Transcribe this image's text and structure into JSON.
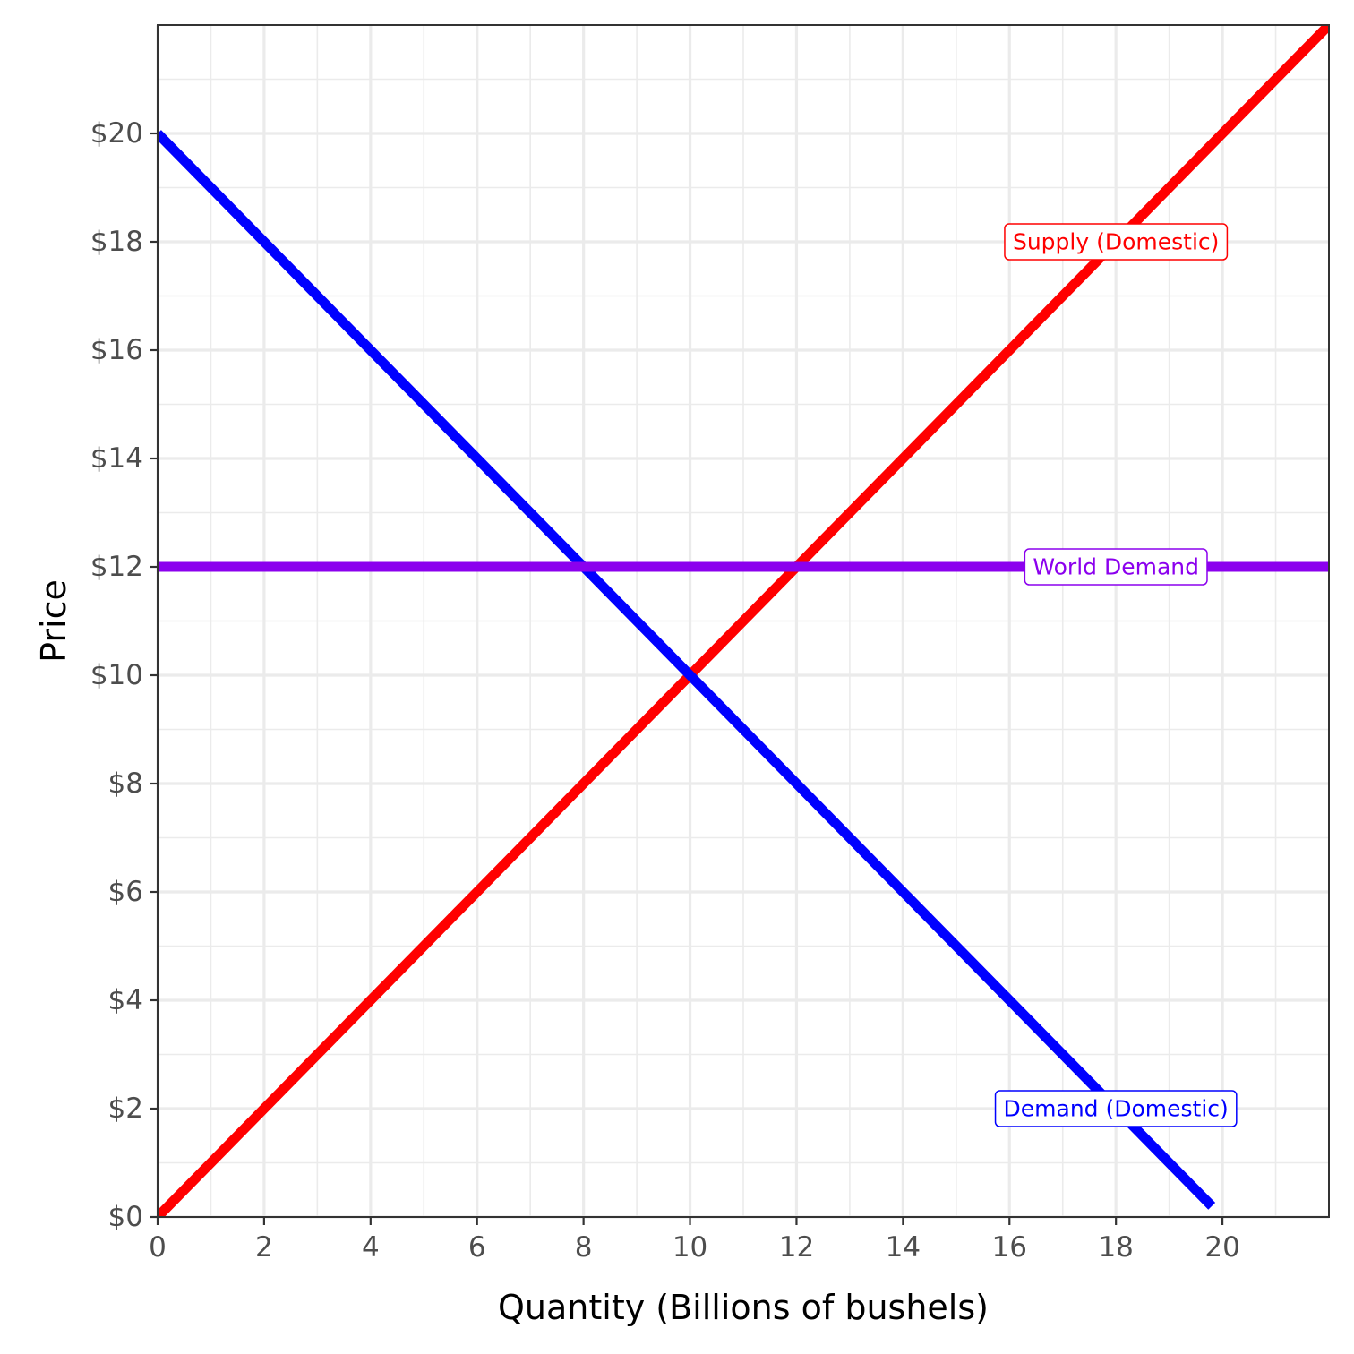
{
  "chart_data": {
    "type": "line",
    "xlabel": "Quantity (Billions of bushels)",
    "ylabel": "Price",
    "xlim": [
      0,
      22
    ],
    "ylim": [
      0,
      22
    ],
    "x_ticks": [
      0,
      2,
      4,
      6,
      8,
      10,
      12,
      14,
      16,
      18,
      20
    ],
    "x_tick_labels": [
      "0",
      "2",
      "4",
      "6",
      "8",
      "10",
      "12",
      "14",
      "16",
      "18",
      "20"
    ],
    "y_ticks": [
      0,
      2,
      4,
      6,
      8,
      10,
      12,
      14,
      16,
      18,
      20
    ],
    "y_tick_labels": [
      "$0",
      "$2",
      "$4",
      "$6",
      "$8",
      "$10",
      "$12",
      "$14",
      "$16",
      "$18",
      "$20"
    ],
    "grid": true,
    "legend": "none",
    "series": [
      {
        "name": "Supply (Domestic)",
        "color": "#ff0000",
        "x": [
          0,
          22
        ],
        "y": [
          0,
          22
        ],
        "label_at": [
          18,
          18
        ]
      },
      {
        "name": "Demand (Domestic)",
        "color": "#0000ff",
        "x": [
          0,
          19.8
        ],
        "y": [
          20,
          0.2
        ],
        "label_at": [
          18,
          2
        ]
      },
      {
        "name": "World Demand",
        "color": "#8b00ee",
        "x": [
          0,
          22
        ],
        "y": [
          12,
          12
        ],
        "label_at": [
          18,
          12
        ]
      }
    ]
  }
}
